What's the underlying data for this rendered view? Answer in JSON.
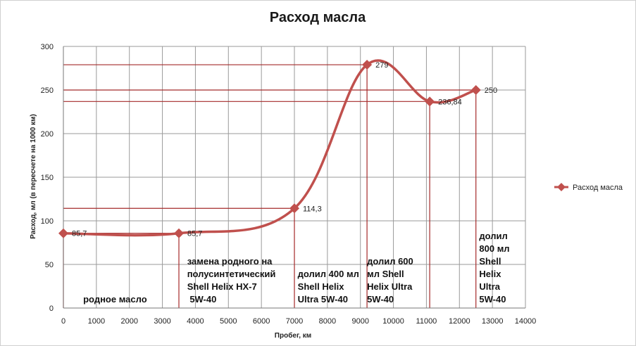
{
  "chart_data": {
    "type": "line",
    "title": "Расход масла",
    "xlabel": "Пробег, км",
    "ylabel": "Расход, мл (в пересчете на 1000 км)",
    "xlim": [
      0,
      14000
    ],
    "ylim": [
      0,
      300
    ],
    "x_ticks": [
      0,
      1000,
      2000,
      3000,
      4000,
      5000,
      6000,
      7000,
      8000,
      9000,
      10000,
      11000,
      12000,
      13000,
      14000
    ],
    "y_ticks": [
      0,
      50,
      100,
      150,
      200,
      250,
      300
    ],
    "grid": true,
    "legend_position": "right",
    "series": [
      {
        "name": "Расход масла",
        "color": "#c0504d",
        "smooth": true,
        "marker": "diamond",
        "points": [
          {
            "x": 0,
            "y": 85.7,
            "label": "85,7"
          },
          {
            "x": 3500,
            "y": 85.7,
            "label": "85,7"
          },
          {
            "x": 7000,
            "y": 114.3,
            "label": "114,3"
          },
          {
            "x": 9200,
            "y": 279,
            "label": "279"
          },
          {
            "x": 11100,
            "y": 236.84,
            "label": "236,84"
          },
          {
            "x": 12500,
            "y": 250,
            "label": "250"
          }
        ]
      }
    ],
    "guide_color": "#a52a2a",
    "annotations": [
      {
        "x": 600,
        "lines": [
          "родное масло"
        ]
      },
      {
        "x": 3750,
        "lines": [
          "замена родного на",
          "полусинтетический",
          "Shell Helix HX-7",
          " 5W-40"
        ]
      },
      {
        "x": 7100,
        "lines": [
          "долил 400 мл",
          "Shell Helix",
          "Ultra 5W-40"
        ]
      },
      {
        "x": 9200,
        "lines": [
          "долил 600",
          "мл Shell",
          "Helix Ultra",
          "5W-40"
        ]
      },
      {
        "x": 12600,
        "lines": [
          "долил",
          "800 мл",
          "Shell",
          "Helix",
          "Ultra",
          "5W-40"
        ]
      }
    ]
  }
}
